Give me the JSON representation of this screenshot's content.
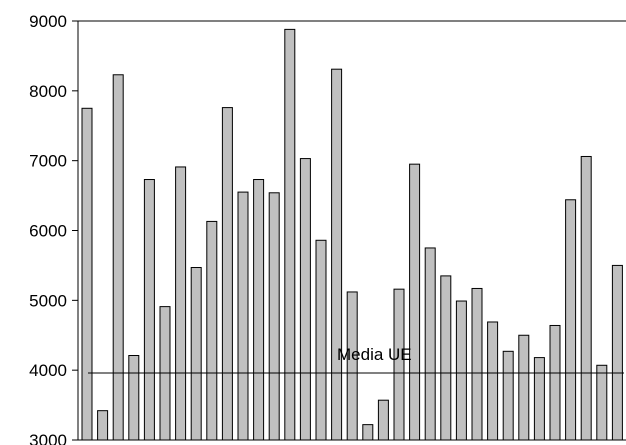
{
  "chart_data": {
    "type": "bar",
    "title": "",
    "xlabel": "",
    "ylabel": "",
    "ylim": [
      3000,
      9000
    ],
    "yticks": [
      3000,
      4000,
      5000,
      6000,
      7000,
      8000,
      9000
    ],
    "grid": false,
    "legend": "none",
    "bar_color": "#c0c0c0",
    "values": [
      7750,
      3420,
      8230,
      4210,
      6730,
      4910,
      6910,
      5470,
      6130,
      7760,
      6550,
      6730,
      6540,
      8880,
      7030,
      5860,
      8310,
      5120,
      3220,
      3570,
      5160,
      6950,
      5750,
      5350,
      4990,
      5170,
      4690,
      4270,
      4500,
      4180,
      4640,
      6440,
      7060,
      4070,
      5500
    ],
    "reference_line": {
      "label": "Media UE",
      "value": 3960
    }
  }
}
